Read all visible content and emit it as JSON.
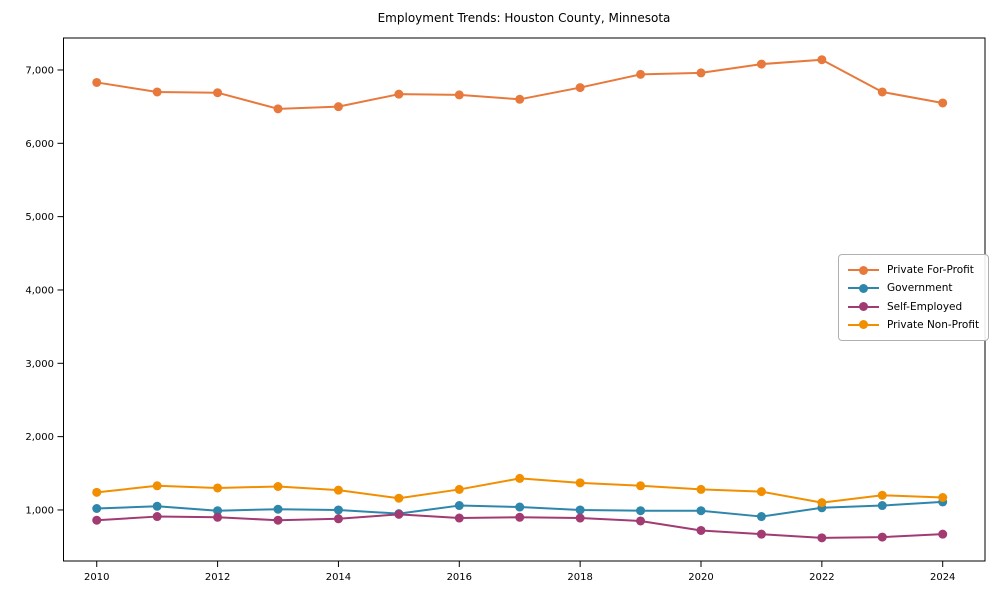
{
  "figure": {
    "title": "Employment Trends: Houston County, Minnesota"
  },
  "chart_data": {
    "type": "line",
    "title": "Employment Trends: Houston County, Minnesota",
    "xlabel": "",
    "ylabel": "",
    "x": [
      2010,
      2011,
      2012,
      2013,
      2014,
      2015,
      2016,
      2017,
      2018,
      2019,
      2020,
      2021,
      2022,
      2023,
      2024
    ],
    "series": [
      {
        "name": "Private For-Profit",
        "color": "#E8793C",
        "values": [
          6830,
          6700,
          6690,
          6470,
          6500,
          6670,
          6660,
          6600,
          6760,
          6940,
          6960,
          7080,
          7140,
          6700,
          6550
        ]
      },
      {
        "name": "Government",
        "color": "#2E86AB",
        "values": [
          1020,
          1050,
          990,
          1010,
          1000,
          950,
          1060,
          1040,
          1000,
          990,
          990,
          910,
          1030,
          1060,
          1110
        ]
      },
      {
        "name": "Self-Employed",
        "color": "#A23B72",
        "values": [
          860,
          910,
          900,
          860,
          880,
          940,
          890,
          900,
          890,
          850,
          720,
          670,
          620,
          630,
          670
        ]
      },
      {
        "name": "Private Non-Profit",
        "color": "#F18F01",
        "values": [
          1240,
          1330,
          1300,
          1320,
          1270,
          1160,
          1280,
          1430,
          1370,
          1330,
          1280,
          1250,
          1100,
          1200,
          1170
        ]
      }
    ],
    "xticks": [
      {
        "value": 2010,
        "label": "2010"
      },
      {
        "value": 2012,
        "label": "2012"
      },
      {
        "value": 2014,
        "label": "2014"
      },
      {
        "value": 2016,
        "label": "2016"
      },
      {
        "value": 2018,
        "label": "2018"
      },
      {
        "value": 2020,
        "label": "2020"
      },
      {
        "value": 2022,
        "label": "2022"
      },
      {
        "value": 2024,
        "label": "2024"
      }
    ],
    "yticks": [
      {
        "value": 1000,
        "label": "1,000"
      },
      {
        "value": 2000,
        "label": "2,000"
      },
      {
        "value": 3000,
        "label": "3,000"
      },
      {
        "value": 4000,
        "label": "4,000"
      },
      {
        "value": 5000,
        "label": "5,000"
      },
      {
        "value": 6000,
        "label": "6,000"
      },
      {
        "value": 7000,
        "label": "7,000"
      }
    ],
    "xlim": [
      2009.45,
      2024.7
    ],
    "ylim": [
      304,
      7436
    ],
    "grid": false,
    "legend_position": "center right"
  }
}
